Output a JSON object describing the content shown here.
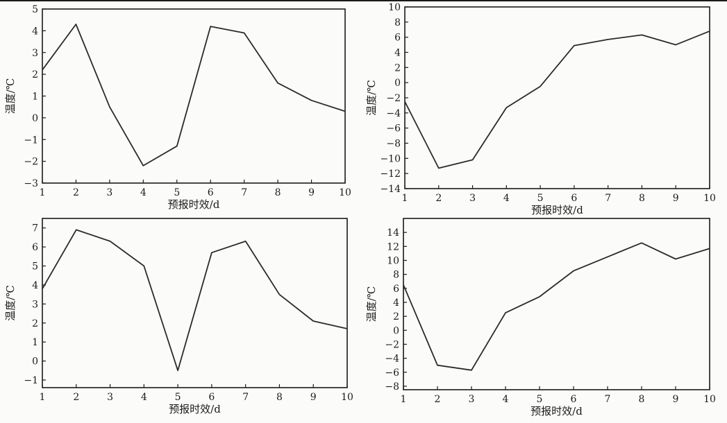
{
  "chart_data": [
    {
      "type": "line",
      "title": "",
      "xlabel": "预报时效/d",
      "ylabel": "温度/℃",
      "x": [
        1,
        2,
        3,
        4,
        5,
        6,
        7,
        8,
        9,
        10
      ],
      "values": [
        2.2,
        4.3,
        0.5,
        -2.2,
        -1.3,
        4.2,
        3.9,
        1.6,
        0.8,
        0.3
      ],
      "xlim": [
        1,
        10
      ],
      "ylim": [
        -3,
        5
      ],
      "xticks": [
        1,
        2,
        3,
        4,
        5,
        6,
        7,
        8,
        9,
        10
      ],
      "yticks": [
        5,
        4,
        3,
        2,
        1,
        0,
        -1,
        -2,
        -3
      ],
      "grid": false
    },
    {
      "type": "line",
      "title": "",
      "xlabel": "预报时效/d",
      "ylabel": "温度/℃",
      "x": [
        1,
        2,
        3,
        4,
        5,
        6,
        7,
        8,
        9,
        10
      ],
      "values": [
        -2.5,
        -11.3,
        -10.2,
        -3.3,
        -0.5,
        4.9,
        5.7,
        6.3,
        5.0,
        6.8
      ],
      "xlim": [
        1,
        10
      ],
      "ylim": [
        -14,
        10
      ],
      "xticks": [
        1,
        2,
        3,
        4,
        5,
        6,
        7,
        8,
        9,
        10
      ],
      "yticks": [
        10,
        8,
        6,
        4,
        2,
        0,
        -2,
        -4,
        -6,
        -8,
        -10,
        -12,
        -14
      ],
      "grid": false
    },
    {
      "type": "line",
      "title": "",
      "xlabel": "预报时效/d",
      "ylabel": "温度/℃",
      "x": [
        1,
        2,
        3,
        4,
        5,
        6,
        7,
        8,
        9,
        10
      ],
      "values": [
        3.8,
        6.9,
        6.3,
        5.0,
        -0.5,
        5.7,
        6.3,
        3.5,
        2.1,
        1.7
      ],
      "xlim": [
        1,
        10
      ],
      "ylim": [
        -1.4,
        7.5
      ],
      "xticks": [
        1,
        2,
        3,
        4,
        5,
        6,
        7,
        8,
        9,
        10
      ],
      "yticks": [
        7,
        6,
        5,
        4,
        3,
        2,
        1,
        0,
        -1
      ],
      "grid": false
    },
    {
      "type": "line",
      "title": "",
      "xlabel": "预报时效/d",
      "ylabel": "温度/℃",
      "x": [
        1,
        2,
        3,
        4,
        5,
        6,
        7,
        8,
        9,
        10
      ],
      "values": [
        6.5,
        -5.0,
        -5.7,
        2.5,
        4.8,
        8.5,
        10.5,
        12.5,
        10.2,
        11.7
      ],
      "xlim": [
        1,
        10
      ],
      "ylim": [
        -8.5,
        16
      ],
      "xticks": [
        1,
        2,
        3,
        4,
        5,
        6,
        7,
        8,
        9,
        10
      ],
      "yticks": [
        14,
        12,
        10,
        8,
        6,
        4,
        2,
        0,
        -2,
        -4,
        -6,
        -8
      ],
      "grid": false
    }
  ]
}
